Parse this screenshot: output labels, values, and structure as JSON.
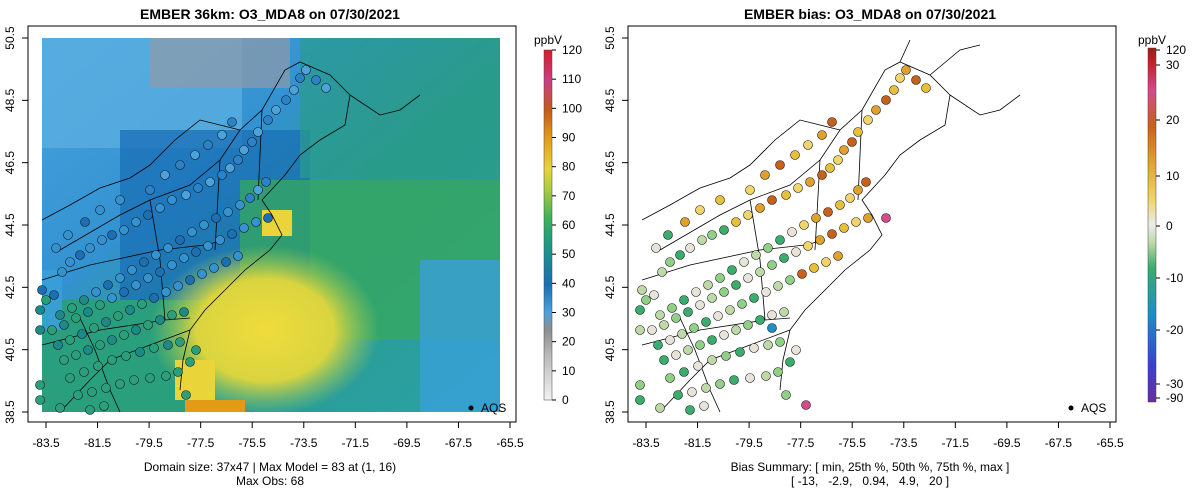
{
  "left_panel": {
    "title": "EMBER 36km: O3_MDA8 on 07/30/2021",
    "legend_unit": "ppbV",
    "legend_ticks": [
      "120",
      "110",
      "100",
      "90",
      "80",
      "70",
      "60",
      "50",
      "40",
      "30",
      "20",
      "10",
      "0"
    ],
    "aqs_label": "AQS",
    "caption_line1": "Domain size: 37x47 | Max Model = 83 at (1, 16)",
    "caption_line2": "Max Obs: 68"
  },
  "right_panel": {
    "title": "EMBER bias: O3_MDA8 on 07/30/2021",
    "legend_unit": "ppbV",
    "legend_ticks": [
      "120",
      "30",
      "20",
      "10",
      "0",
      "-10",
      "-20",
      "-30",
      "-90"
    ],
    "aqs_label": "AQS",
    "caption_line1": "Bias Summary: [ min, 25th %, 50th %, 75th %, max ]",
    "caption_line2": "[ -13,   -2.9,   0.94,   4.9,   20 ]"
  },
  "axes": {
    "lon_ticks": [
      "-83.5",
      "-81.5",
      "-79.5",
      "-77.5",
      "-75.5",
      "-73.5",
      "-71.5",
      "-69.5",
      "-67.5",
      "-65.5"
    ],
    "lat_ticks": [
      "38.5",
      "40.5",
      "42.5",
      "44.5",
      "46.5",
      "48.5",
      "50.5"
    ]
  },
  "colors": {
    "conc_scale": [
      "#f2f2f2",
      "#9a9a9a",
      "#2f95d6",
      "#1a6fb5",
      "#1d9c83",
      "#3bb35a",
      "#a8cc3c",
      "#e9d43a",
      "#e39a17",
      "#c55a1a",
      "#cc3d86",
      "#d81b2a"
    ],
    "bias_scale": [
      "#6a2ea0",
      "#2a3fd0",
      "#1a8fc8",
      "#3aad6d",
      "#bdd9a6",
      "#e7e3d8",
      "#f0d56a",
      "#e0a12a",
      "#c9601a",
      "#d44a8b",
      "#c62028"
    ]
  }
}
